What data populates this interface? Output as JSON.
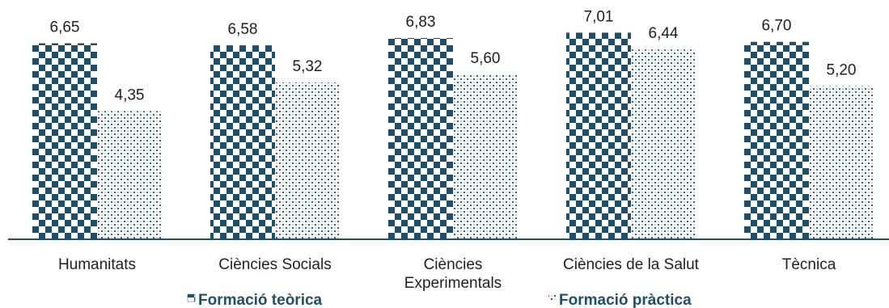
{
  "chart_data": {
    "type": "bar",
    "title": "",
    "xlabel": "",
    "ylabel": "",
    "ylim": [
      0,
      7.35
    ],
    "grid": false,
    "legend_position": "bottom",
    "categories": [
      "Humanitats",
      "Ciències Socials",
      "Ciències Experimentals",
      "Ciències de la Salut",
      "Tècnica"
    ],
    "series": [
      {
        "name": "Formació teòrica",
        "values": [
          6.65,
          6.58,
          6.83,
          7.01,
          6.7
        ],
        "value_labels": [
          "6,65",
          "6,58",
          "6,83",
          "7,01",
          "6,70"
        ],
        "color": "#1f5068",
        "pattern": "checkerboard"
      },
      {
        "name": "Formació pràctica",
        "values": [
          4.35,
          5.32,
          5.6,
          6.44,
          5.2
        ],
        "value_labels": [
          "4,35",
          "5,32",
          "5,60",
          "6,44",
          "5,20"
        ],
        "color": "#1f5068",
        "pattern": "dotted"
      }
    ]
  },
  "colors": {
    "axis": "#1f5068",
    "text": "#1f1f1f",
    "legend_text": "#1f5068",
    "background": "#ffffff"
  }
}
